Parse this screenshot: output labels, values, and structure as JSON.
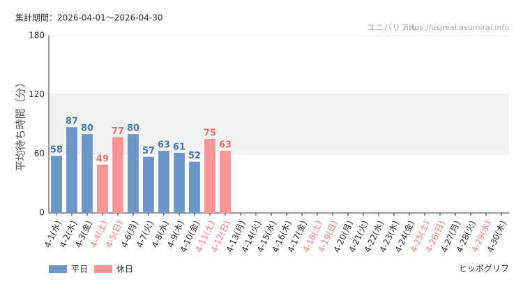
{
  "chart_data": {
    "type": "bar",
    "period": "集計期間：2026-04-01～2026-04-30",
    "source": "ユニバリアル",
    "url": "https://usjreal.asumirai.info",
    "ylabel": "平均待ち時間（分）",
    "subject": "ヒッポグリフ",
    "categories": [
      "4-1(水)",
      "4-2(木)",
      "4-3(金)",
      "4-4(土)",
      "4-5(日)",
      "4-6(月)",
      "4-7(火)",
      "4-8(水)",
      "4-9(木)",
      "4-10(金)",
      "4-11(土)",
      "4-12(日)",
      "4-13(月)",
      "4-14(火)",
      "4-15(水)",
      "4-16(木)",
      "4-17(金)",
      "4-18(土)",
      "4-19(日)",
      "4-20(月)",
      "4-21(火)",
      "4-22(水)",
      "4-23(木)",
      "4-24(金)",
      "4-25(土)",
      "4-26(日)",
      "4-27(月)",
      "4-28(火)",
      "4-29(水)",
      "4-30(木)"
    ],
    "label_colors": [
      "#333",
      "#333",
      "#333",
      "#f08080",
      "#f08080",
      "#333",
      "#333",
      "#333",
      "#333",
      "#333",
      "#f08080",
      "#f08080",
      "#333",
      "#333",
      "#333",
      "#333",
      "#333",
      "#f08080",
      "#f08080",
      "#333",
      "#333",
      "#333",
      "#333",
      "#333",
      "#f08080",
      "#f08080",
      "#333",
      "#333",
      "#f08080",
      "#333"
    ],
    "series": [
      {
        "name": "平日",
        "color": "#6b97c6",
        "label_color": "#4a78ad",
        "values": [
          58,
          87,
          80,
          null,
          null,
          80,
          57,
          63,
          61,
          52,
          null,
          null,
          null,
          null,
          null,
          null,
          null,
          null,
          null,
          null,
          null,
          null,
          null,
          null,
          null,
          null,
          null,
          null,
          null,
          null
        ]
      },
      {
        "name": "休日",
        "color": "#ff9396",
        "label_color": "#f07070",
        "values": [
          null,
          null,
          null,
          49,
          77,
          null,
          null,
          null,
          null,
          null,
          75,
          63,
          null,
          null,
          null,
          null,
          null,
          null,
          null,
          null,
          null,
          null,
          null,
          null,
          null,
          null,
          null,
          null,
          null,
          null
        ]
      }
    ],
    "ylim": [
      0,
      180
    ],
    "yticks": [
      0,
      60,
      120,
      180
    ],
    "shaded_range": [
      60,
      120
    ],
    "grid": true
  }
}
